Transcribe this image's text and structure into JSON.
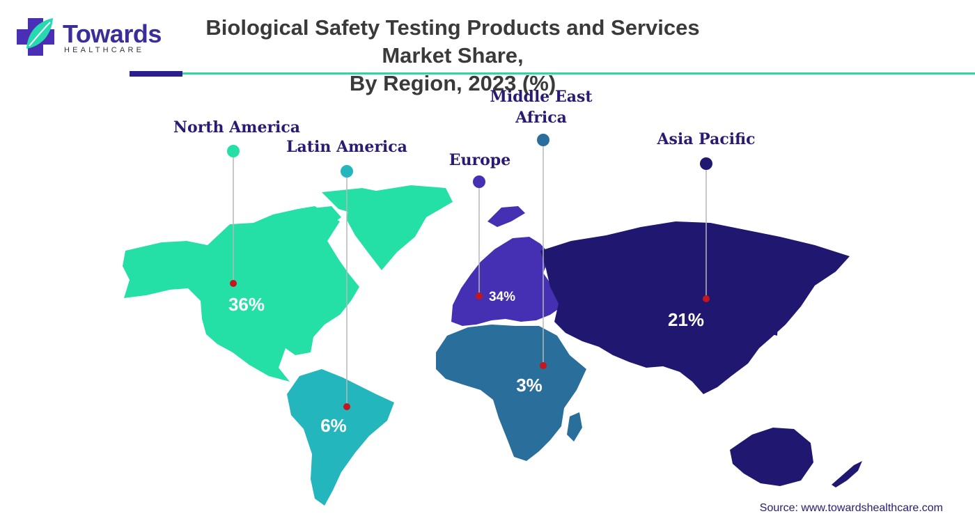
{
  "logo": {
    "name": "Towards",
    "sub": "HEALTHCARE"
  },
  "title_line1": "Biological Safety Testing Products and Services Market Share,",
  "title_line2": "By Region, 2023 (%)",
  "source": "Source: www.towardshealthcare.com",
  "colors": {
    "north_america": "#25e0a6",
    "latin_america": "#23b6bd",
    "europe": "#4530b3",
    "middle_east_africa": "#2a6e9b",
    "asia_pacific": "#1f1770",
    "marker": "#c4161c",
    "leader_line": "#b7b7b7"
  },
  "chart_data": {
    "type": "map",
    "title": "Biological Safety Testing Products and Services Market Share, By Region, 2023 (%)",
    "unit": "%",
    "regions": [
      {
        "name": "North America",
        "value": 36,
        "label": "36%"
      },
      {
        "name": "Latin America",
        "value": 6,
        "label": "6%"
      },
      {
        "name": "Europe",
        "value": 34,
        "label": "34%"
      },
      {
        "name": "Middle East Africa",
        "value": 3,
        "label": "3%"
      },
      {
        "name": "Asia Pacific",
        "value": 21,
        "label": "21%"
      }
    ]
  }
}
